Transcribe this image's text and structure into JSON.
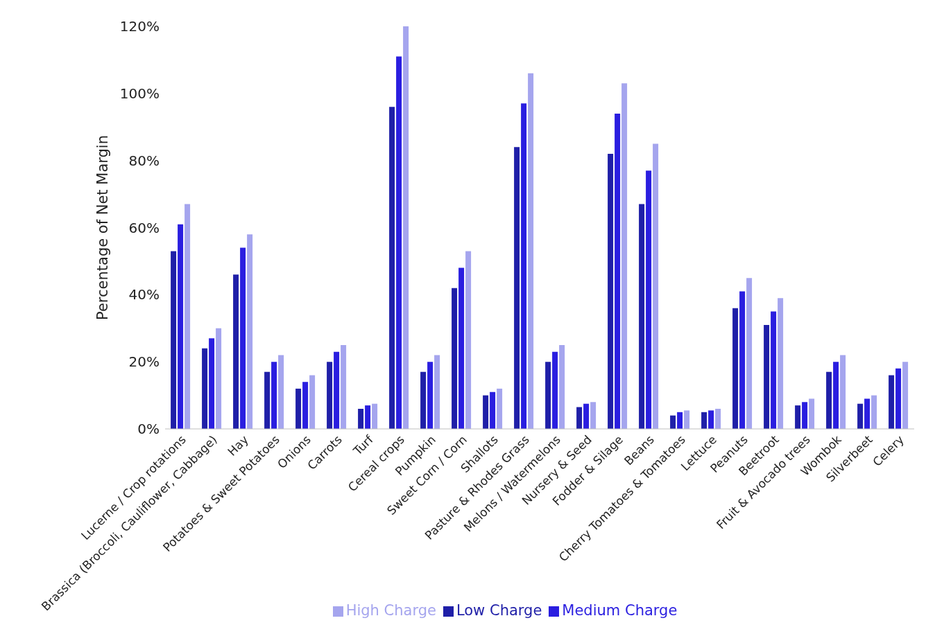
{
  "chart_data": {
    "type": "bar",
    "ylabel": "Percentage of Net Margin",
    "categories": [
      "Lucerne / Crop rotations",
      "Brassica (Broccoli, Cauliflower, Cabbage)",
      "Hay",
      "Potatoes & Sweet Potatoes",
      "Onions",
      "Carrots",
      "Turf",
      "Cereal crops",
      "Pumpkin",
      "Sweet Corn / Corn",
      "Shallots",
      "Pasture & Rhodes Grass",
      "Melons / Watermelons",
      "Nursery & Seed",
      "Fodder & Silage",
      "Beans",
      "Cherry Tomatoes & Tomatoes",
      "Lettuce",
      "Peanuts",
      "Beetroot",
      "Fruit & Avocado trees",
      "Wombok",
      "Silverbeet",
      "Celery"
    ],
    "series": [
      {
        "name": "Low Charge",
        "color": "#1f1fa8",
        "values": [
          53,
          24,
          46,
          17,
          12,
          20,
          6,
          96,
          17,
          42,
          10,
          84,
          20,
          6.5,
          82,
          67,
          4,
          5,
          36,
          31,
          7,
          17,
          7.5,
          16
        ]
      },
      {
        "name": "Medium Charge",
        "color": "#2a1ee0",
        "values": [
          61,
          27,
          54,
          20,
          14,
          23,
          7,
          111,
          20,
          48,
          11,
          97,
          23,
          7.5,
          94,
          77,
          5,
          5.5,
          41,
          35,
          8,
          20,
          9,
          18
        ]
      },
      {
        "name": "High Charge",
        "color": "#a5a5ee",
        "values": [
          67,
          30,
          58,
          22,
          16,
          25,
          7.5,
          120,
          22,
          53,
          12,
          106,
          25,
          8,
          103,
          85,
          5.5,
          6,
          45,
          39,
          9,
          22,
          10,
          20
        ]
      }
    ],
    "ylim": [
      0,
      120
    ],
    "yticks": [
      {
        "value": 0,
        "label": "0%"
      },
      {
        "value": 20,
        "label": "20%"
      },
      {
        "value": 40,
        "label": "40%"
      },
      {
        "value": 60,
        "label": "60%"
      },
      {
        "value": 80,
        "label": "80%"
      },
      {
        "value": 100,
        "label": "100%"
      },
      {
        "value": 120,
        "label": "120%"
      }
    ],
    "grid": false,
    "legend": "bottom"
  }
}
